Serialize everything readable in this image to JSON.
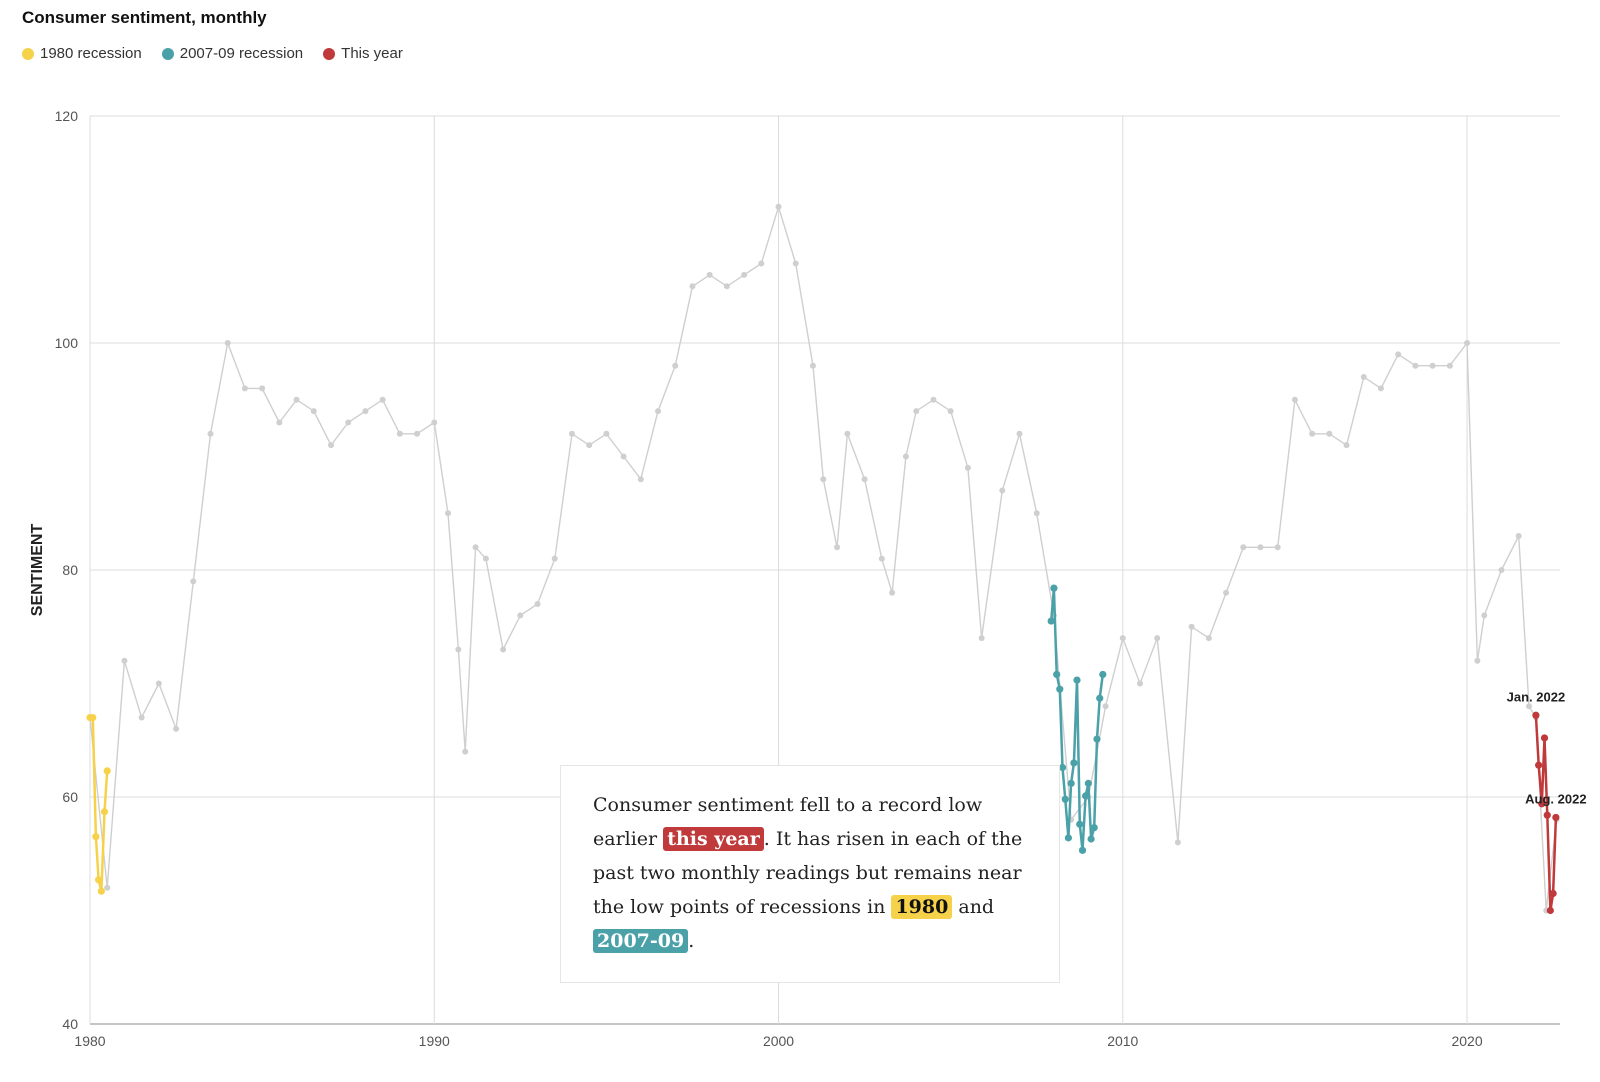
{
  "chart_data": {
    "type": "line",
    "title": "Consumer sentiment, monthly",
    "ylabel": "SENTIMENT",
    "xlabel": "",
    "xlim": [
      1980,
      2022.7
    ],
    "ylim": [
      40,
      120
    ],
    "x_ticks": [
      "1980",
      "1990",
      "2000",
      "2010",
      "2020"
    ],
    "y_ticks": [
      "40",
      "60",
      "80",
      "100",
      "120"
    ],
    "grid": true,
    "legend": [
      {
        "name": "1980 recession",
        "color": "#f6d24a"
      },
      {
        "name": "2007-09 recession",
        "color": "#4aa1a8"
      },
      {
        "name": "This year",
        "color": "#c0393b"
      }
    ],
    "background_series_color": "#cfcfcf",
    "series": [
      {
        "name": "Consumer sentiment",
        "x": [
          1980.0,
          1980.5,
          1981.0,
          1981.5,
          1982.0,
          1982.5,
          1983.0,
          1983.5,
          1984.0,
          1984.5,
          1985.0,
          1985.5,
          1986.0,
          1986.5,
          1987.0,
          1987.5,
          1988.0,
          1988.5,
          1989.0,
          1989.5,
          1990.0,
          1990.4,
          1990.7,
          1990.9,
          1991.2,
          1991.5,
          1992.0,
          1992.5,
          1993.0,
          1993.5,
          1994.0,
          1994.5,
          1995.0,
          1995.5,
          1996.0,
          1996.5,
          1997.0,
          1997.5,
          1998.0,
          1998.5,
          1999.0,
          1999.5,
          2000.0,
          2000.5,
          2001.0,
          2001.3,
          2001.7,
          2002.0,
          2002.5,
          2003.0,
          2003.3,
          2003.7,
          2004.0,
          2004.5,
          2005.0,
          2005.5,
          2005.9,
          2006.5,
          2007.0,
          2007.5,
          2008.0,
          2008.5,
          2009.0,
          2009.5,
          2010.0,
          2010.5,
          2011.0,
          2011.6,
          2012.0,
          2012.5,
          2013.0,
          2013.5,
          2014.0,
          2014.5,
          2015.0,
          2015.5,
          2016.0,
          2016.5,
          2017.0,
          2017.5,
          2018.0,
          2018.5,
          2019.0,
          2019.5,
          2020.0,
          2020.3,
          2020.5,
          2021.0,
          2021.5,
          2021.8,
          2022.0,
          2022.3,
          2022.6
        ],
        "values": [
          67,
          52,
          72,
          67,
          70,
          66,
          79,
          92,
          100,
          96,
          96,
          93,
          95,
          94,
          91,
          93,
          94,
          95,
          92,
          92,
          93,
          85,
          73,
          64,
          82,
          81,
          73,
          76,
          77,
          81,
          92,
          91,
          92,
          90,
          88,
          94,
          98,
          105,
          106,
          105,
          106,
          107,
          112,
          107,
          98,
          88,
          82,
          92,
          88,
          81,
          78,
          90,
          94,
          95,
          94,
          89,
          74,
          87,
          92,
          85,
          76,
          58,
          60,
          68,
          74,
          70,
          74,
          56,
          75,
          74,
          78,
          82,
          82,
          82,
          95,
          92,
          92,
          91,
          97,
          96,
          99,
          98,
          98,
          98,
          100,
          72,
          76,
          80,
          83,
          68,
          67,
          50,
          58
        ]
      },
      {
        "name": "1980 recession",
        "x": [
          1980.0,
          1980.08,
          1980.17,
          1980.25,
          1980.33,
          1980.42,
          1980.5
        ],
        "values": [
          67,
          67,
          56.5,
          52.7,
          51.7,
          58.7,
          62.3
        ]
      },
      {
        "name": "2007-09 recession",
        "x": [
          2007.92,
          2008.0,
          2008.08,
          2008.17,
          2008.25,
          2008.33,
          2008.42,
          2008.5,
          2008.58,
          2008.67,
          2008.75,
          2008.83,
          2008.92,
          2009.0,
          2009.08,
          2009.17,
          2009.25,
          2009.33,
          2009.42
        ],
        "values": [
          75.5,
          78.4,
          70.8,
          69.5,
          62.6,
          59.8,
          56.4,
          61.2,
          63.0,
          70.3,
          57.6,
          55.3,
          60.1,
          61.2,
          56.3,
          57.3,
          65.1,
          68.7,
          70.8
        ]
      },
      {
        "name": "This year",
        "x": [
          2022.0,
          2022.08,
          2022.17,
          2022.25,
          2022.33,
          2022.42,
          2022.5,
          2022.58
        ],
        "values": [
          67.2,
          62.8,
          59.4,
          65.2,
          58.4,
          50.0,
          51.5,
          58.2
        ]
      }
    ],
    "annotations": [
      {
        "text": "Jan. 2022",
        "x": 2022.0,
        "y": 67.2
      },
      {
        "text": "Aug. 2022",
        "x": 2022.58,
        "y": 58.2
      }
    ]
  },
  "annotation": {
    "part1": "Consumer sentiment fell to a record low earlier ",
    "hl_this_year": "this year",
    "part2": ". It has risen in each of the past two monthly readings but remains near the low points of recessions in ",
    "hl_1980": "1980",
    "part3": " and ",
    "hl_2007": "2007-09",
    "part4": "."
  }
}
